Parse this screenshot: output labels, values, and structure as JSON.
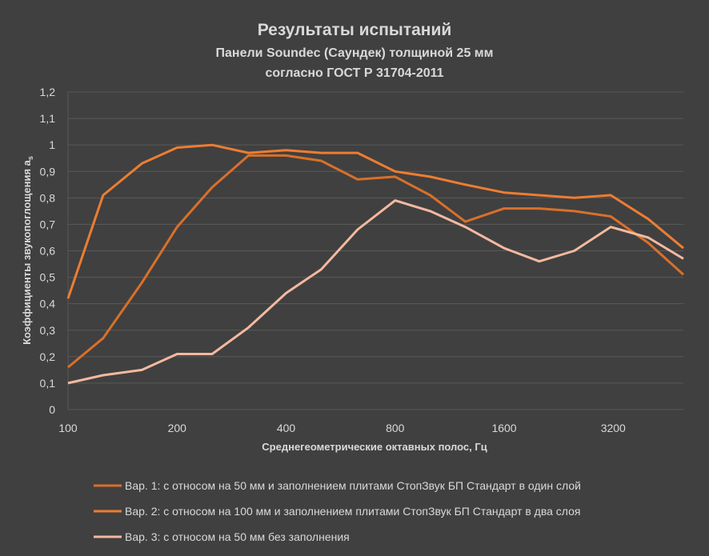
{
  "chart_data": {
    "type": "line",
    "title": "Результаты испытаний",
    "subtitle_lines": [
      "Панели Soundec (Саундек) толщиной 25 мм",
      "согласно ГОСТ Р 31704-2011"
    ],
    "xlabel": "Среднегеометрические октавных полос, Гц",
    "ylabel": "Коэффициенты звукопоглощения a",
    "ylabel_subscript": "s",
    "x_scale": "log",
    "x": [
      100,
      125,
      160,
      200,
      250,
      315,
      400,
      500,
      630,
      800,
      1000,
      1250,
      1600,
      2000,
      2500,
      3150,
      4000,
      5000
    ],
    "x_ticks": [
      100,
      200,
      400,
      800,
      1600,
      3200
    ],
    "x_tick_labels": [
      "100",
      "200",
      "400",
      "800",
      "1600",
      "3200"
    ],
    "xlim": [
      100,
      5000
    ],
    "ylim": [
      0,
      1.2
    ],
    "y_ticks": [
      0,
      0.1,
      0.2,
      0.3,
      0.4,
      0.5,
      0.6,
      0.7,
      0.8,
      0.9,
      1,
      1.1,
      1.2
    ],
    "y_tick_labels": [
      "0",
      "0,1",
      "0,2",
      "0,3",
      "0,4",
      "0,5",
      "0,6",
      "0,7",
      "0,8",
      "0,9",
      "1",
      "1,1",
      "1,2"
    ],
    "grid": "horizontal",
    "legend_position": "bottom",
    "background": "#404040",
    "series": [
      {
        "name": "Вар. 1: с относом на 50 мм и заполнением плитами СтопЗвук БП Стандарт в один слой",
        "color": "#d9702a",
        "values": [
          0.16,
          0.27,
          0.48,
          0.69,
          0.84,
          0.96,
          0.96,
          0.94,
          0.87,
          0.88,
          0.81,
          0.71,
          0.76,
          0.76,
          0.75,
          0.73,
          0.63,
          0.51
        ]
      },
      {
        "name": "Вар. 2: с относом на 100 мм и заполнением плитами СтопЗвук БП Стандарт в два слоя",
        "color": "#ed7d31",
        "values": [
          0.42,
          0.81,
          0.93,
          0.99,
          1.0,
          0.97,
          0.98,
          0.97,
          0.97,
          0.9,
          0.88,
          0.85,
          0.82,
          0.81,
          0.8,
          0.81,
          0.72,
          0.61
        ]
      },
      {
        "name": "Вар. 3: с относом на 50 мм без заполнения",
        "color": "#f4b9a0",
        "values": [
          0.1,
          0.13,
          0.15,
          0.21,
          0.21,
          0.31,
          0.44,
          0.53,
          0.68,
          0.79,
          0.75,
          0.69,
          0.61,
          0.56,
          0.6,
          0.69,
          0.65,
          0.57
        ]
      }
    ]
  }
}
